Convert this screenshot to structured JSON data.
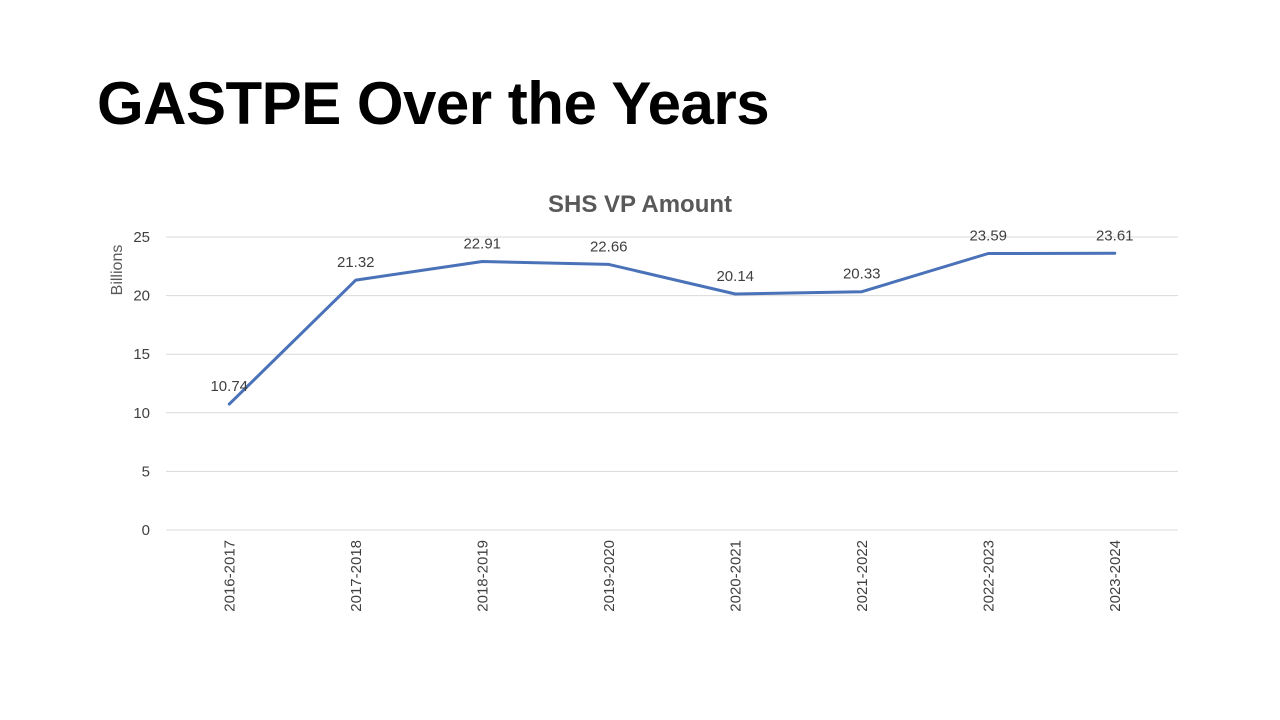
{
  "slide": {
    "title": "GASTPE Over the Years"
  },
  "chart_data": {
    "type": "line",
    "title": "SHS VP Amount",
    "xlabel": "",
    "ylabel": "Billions",
    "categories": [
      "2016-2017",
      "2017-2018",
      "2018-2019",
      "2019-2020",
      "2020-2021",
      "2021-2022",
      "2022-2023",
      "2023-2024"
    ],
    "series": [
      {
        "values": [
          10.74,
          21.32,
          22.91,
          22.66,
          20.14,
          20.33,
          23.59,
          23.61
        ],
        "labels": [
          "10.74",
          "21.32",
          "22.91",
          "22.66",
          "20.14",
          "20.33",
          "23.59",
          "23.61"
        ],
        "color": "#4a72b8"
      }
    ],
    "ylim": [
      0,
      25
    ],
    "yticks": [
      0,
      5,
      10,
      15,
      20,
      25
    ],
    "ytick_labels": [
      "0",
      "5",
      "10",
      "15",
      "20",
      "25"
    ],
    "grid": true,
    "legend": "none",
    "data_labels": "above"
  }
}
